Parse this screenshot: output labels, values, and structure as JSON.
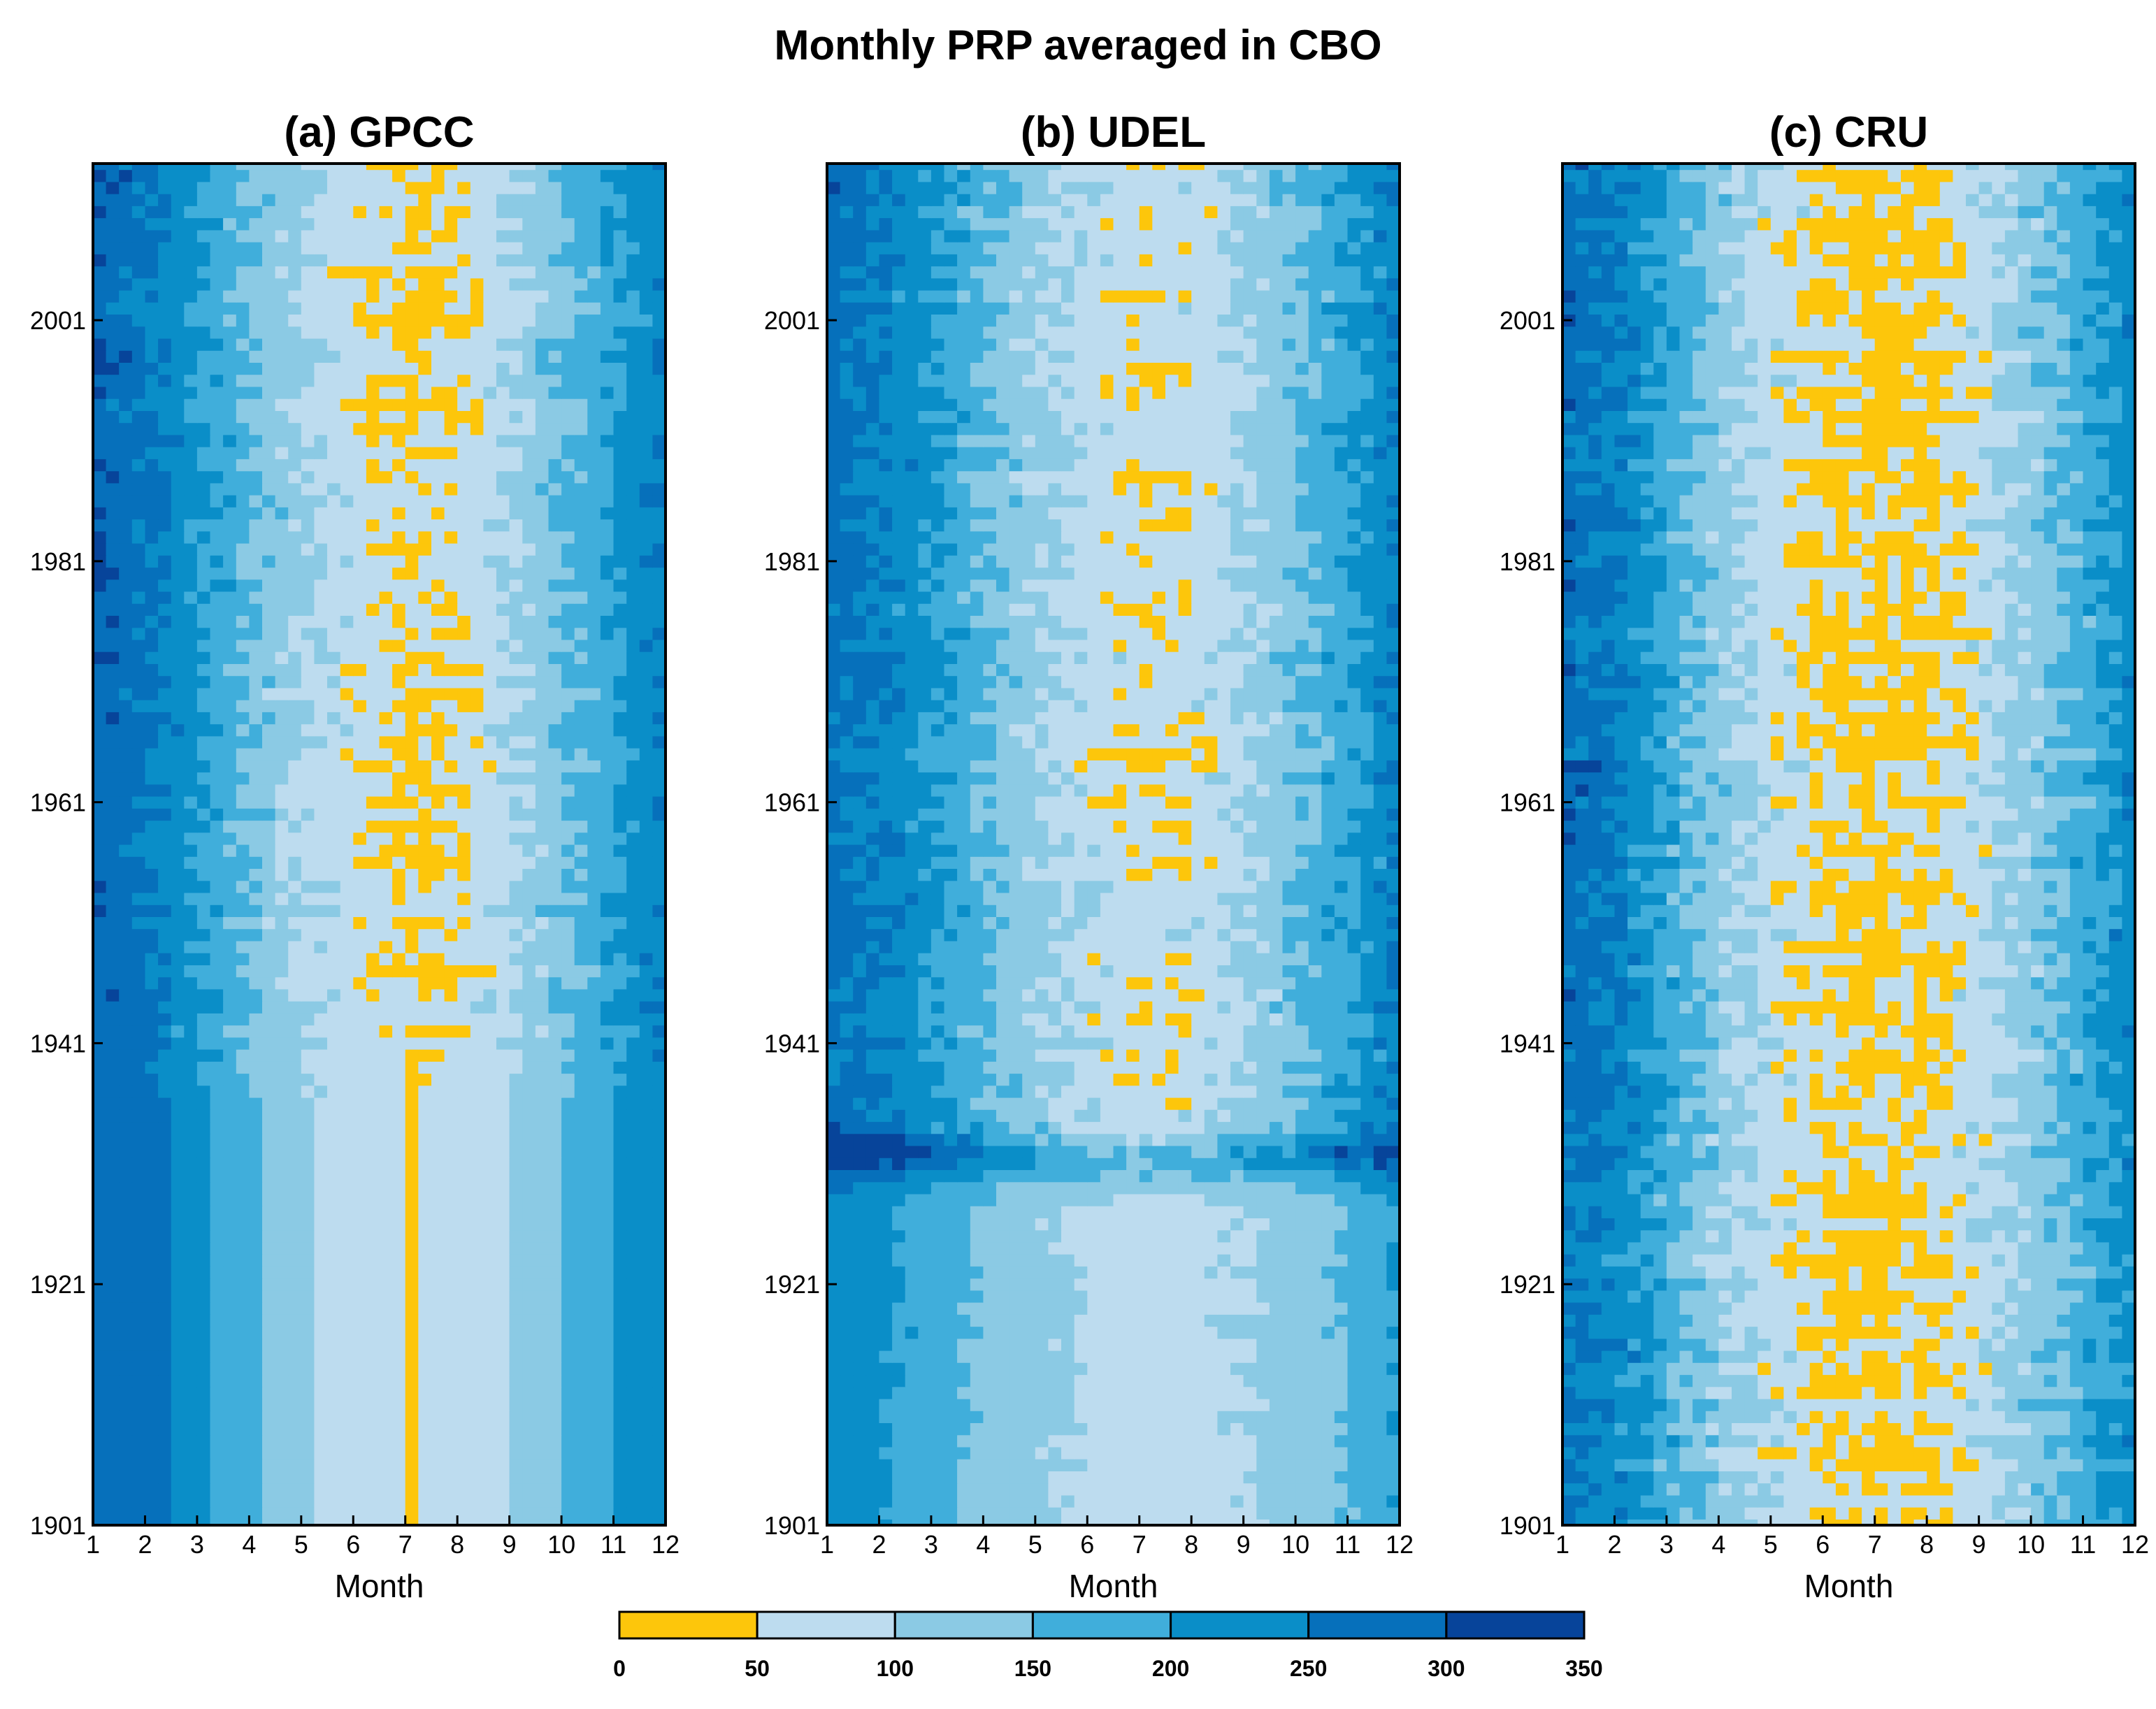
{
  "chart_data": {
    "type": "heatmap",
    "title": "Monthly PRP averaged in CBO",
    "panels": [
      {
        "name": "gpcc",
        "title": "(a) GPCC",
        "xlabel": "Month",
        "ylabel": "",
        "x_ticks": [
          "1",
          "2",
          "3",
          "4",
          "5",
          "6",
          "7",
          "8",
          "9",
          "10",
          "11",
          "12"
        ],
        "y_ticks": [
          "1901",
          "1921",
          "1941",
          "1961",
          "1981",
          "2001"
        ],
        "y_tick_values": [
          1901,
          1921,
          1941,
          1961,
          1981,
          2001
        ],
        "xlim": [
          1,
          12
        ],
        "ylim": [
          1901,
          2014
        ],
        "profile_modern": [
          290,
          255,
          200,
          140,
          95,
          68,
          45,
          60,
          100,
          150,
          205,
          260
        ],
        "profile_early": [
          265,
          265,
          205,
          150,
          100,
          95,
          45,
          95,
          100,
          150,
          205,
          240
        ],
        "noise_modern": 28,
        "noise_early": 0,
        "early_until": 1936,
        "transition_years": 6,
        "extra_amp": 0,
        "seed": 11
      },
      {
        "name": "udel",
        "title": "(b) UDEL",
        "xlabel": "Month",
        "ylabel": "",
        "x_ticks": [
          "1",
          "2",
          "3",
          "4",
          "5",
          "6",
          "7",
          "8",
          "9",
          "10",
          "11",
          "12"
        ],
        "y_ticks": [
          "1901",
          "1921",
          "1941",
          "1961",
          "1981",
          "2001"
        ],
        "y_tick_values": [
          1901,
          1921,
          1941,
          1961,
          1981,
          2001
        ],
        "xlim": [
          1,
          12
        ],
        "ylim": [
          1901,
          2014
        ],
        "profile_modern": [
          270,
          245,
          200,
          150,
          110,
          78,
          60,
          72,
          105,
          150,
          200,
          260
        ],
        "profile_early": [
          230,
          205,
          170,
          135,
          110,
          90,
          85,
          88,
          100,
          125,
          160,
          210
        ],
        "noise_modern": 30,
        "noise_early": 10,
        "early_until": 1930,
        "transition_years": 2,
        "extra_amp": 120,
        "extra_center": 1931.5,
        "extra_width": 2.2,
        "seed": 23
      },
      {
        "name": "cru",
        "title": "(c) CRU",
        "xlabel": "Month",
        "ylabel": "",
        "x_ticks": [
          "1",
          "2",
          "3",
          "4",
          "5",
          "6",
          "7",
          "8",
          "9",
          "10",
          "11",
          "12"
        ],
        "y_ticks": [
          "1901",
          "1921",
          "1941",
          "1961",
          "1981",
          "2001"
        ],
        "y_tick_values": [
          1901,
          1921,
          1941,
          1961,
          1981,
          2001
        ],
        "xlim": [
          1,
          12
        ],
        "ylim": [
          1901,
          2014
        ],
        "profile_modern": [
          275,
          245,
          175,
          115,
          72,
          48,
          40,
          48,
          80,
          130,
          185,
          245
        ],
        "profile_early": [
          255,
          225,
          165,
          110,
          72,
          50,
          45,
          55,
          85,
          130,
          180,
          235
        ],
        "noise_modern": 34,
        "noise_early": 34,
        "early_until": 1930,
        "transition_years": 6,
        "extra_amp": 0,
        "seed": 37
      }
    ],
    "colorbar": {
      "levels": [
        "0",
        "50",
        "100",
        "150",
        "200",
        "250",
        "300",
        "350"
      ],
      "level_values": [
        0,
        50,
        100,
        150,
        200,
        250,
        300,
        350
      ],
      "colors": [
        "#FDC60B",
        "#BDDCEF",
        "#8BCAE4",
        "#40AEDB",
        "#0A8EC8",
        "#0670BB",
        "#07449A"
      ]
    }
  }
}
